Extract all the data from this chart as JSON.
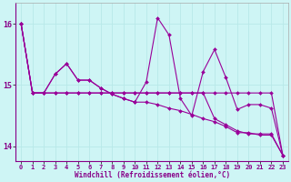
{
  "xlabel": "Windchill (Refroidissement éolien,°C)",
  "background_color": "#cef5f5",
  "line_color": "#990099",
  "grid_color": "#b8e8e8",
  "xlim": [
    -0.5,
    23.5
  ],
  "ylim": [
    13.75,
    16.35
  ],
  "yticks": [
    14,
    15,
    16
  ],
  "xticks": [
    0,
    1,
    2,
    3,
    4,
    5,
    6,
    7,
    8,
    9,
    10,
    11,
    12,
    13,
    14,
    15,
    16,
    17,
    18,
    19,
    20,
    21,
    22,
    23
  ],
  "series": [
    [
      16.0,
      14.87,
      14.87,
      14.87,
      14.87,
      14.87,
      14.87,
      14.87,
      14.87,
      14.87,
      14.87,
      14.87,
      14.87,
      14.87,
      14.87,
      14.87,
      14.87,
      14.87,
      14.87,
      14.87,
      14.87,
      14.87,
      14.87,
      13.85
    ],
    [
      16.0,
      14.87,
      14.87,
      14.87,
      14.87,
      14.87,
      14.87,
      14.87,
      14.87,
      14.87,
      14.87,
      14.87,
      14.87,
      14.87,
      14.87,
      14.87,
      14.87,
      14.45,
      14.35,
      14.25,
      14.2,
      14.2,
      14.2,
      13.85
    ],
    [
      16.0,
      14.87,
      14.87,
      15.18,
      15.35,
      15.08,
      15.08,
      14.95,
      14.85,
      14.78,
      14.72,
      15.05,
      16.1,
      15.82,
      14.78,
      14.5,
      15.22,
      15.58,
      15.12,
      14.6,
      14.68,
      14.68,
      14.62,
      13.85
    ],
    [
      16.0,
      14.87,
      14.87,
      15.18,
      15.35,
      15.08,
      15.08,
      14.95,
      14.85,
      14.78,
      14.72,
      14.72,
      14.68,
      14.62,
      14.58,
      14.52,
      14.45,
      14.4,
      14.32,
      14.22,
      14.22,
      14.18,
      14.18,
      13.85
    ]
  ]
}
